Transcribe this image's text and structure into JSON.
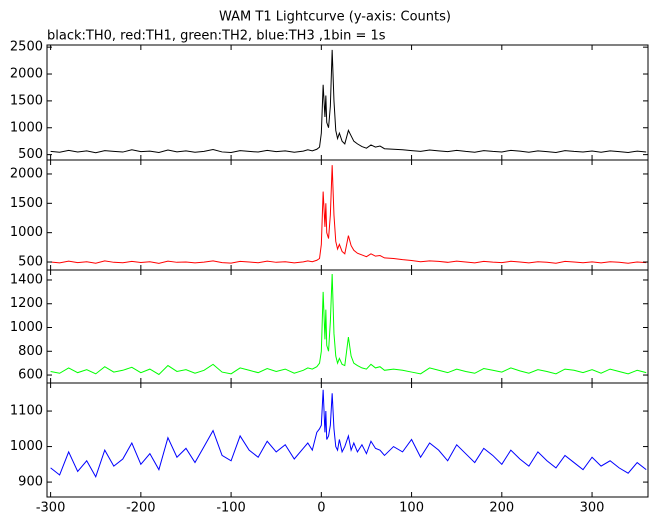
{
  "chart_data": [
    {
      "type": "line",
      "title": "WAM T1 Lightcurve (y-axis: Counts)",
      "subtitle": "black:TH0, red:TH1, green:TH2, blue:TH3 ,1bin = 1s",
      "x": [
        -300,
        -290,
        -280,
        -270,
        -260,
        -250,
        -240,
        -230,
        -220,
        -210,
        -200,
        -190,
        -180,
        -170,
        -160,
        -150,
        -140,
        -130,
        -120,
        -110,
        -100,
        -90,
        -80,
        -70,
        -60,
        -50,
        -40,
        -30,
        -20,
        -15,
        -10,
        -5,
        -2,
        0,
        2,
        4,
        5,
        6,
        8,
        10,
        12,
        14,
        16,
        18,
        20,
        23,
        26,
        30,
        33,
        36,
        40,
        45,
        50,
        55,
        60,
        65,
        70,
        80,
        90,
        100,
        110,
        120,
        130,
        140,
        150,
        160,
        170,
        180,
        190,
        200,
        210,
        220,
        230,
        240,
        250,
        260,
        270,
        280,
        290,
        300,
        310,
        320,
        330,
        340,
        350,
        360
      ],
      "series": [
        {
          "name": "TH0",
          "color": "#000000",
          "values": [
            560,
            545,
            580,
            550,
            570,
            535,
            575,
            560,
            548,
            590,
            555,
            565,
            540,
            585,
            552,
            570,
            545,
            560,
            595,
            550,
            540,
            575,
            560,
            548,
            580,
            555,
            570,
            545,
            565,
            590,
            570,
            600,
            640,
            900,
            1800,
            1200,
            1600,
            1100,
            1000,
            1400,
            2450,
            1500,
            950,
            800,
            900,
            750,
            700,
            950,
            850,
            750,
            700,
            650,
            620,
            680,
            640,
            660,
            610,
            600,
            590,
            575,
            560,
            585,
            570,
            555,
            580,
            560,
            545,
            575,
            560,
            550,
            580,
            565,
            545,
            570,
            555,
            540,
            575,
            560,
            550,
            568,
            545,
            570,
            555,
            540,
            565,
            550
          ]
        }
      ],
      "xlim": [
        -304,
        362
      ],
      "ylim": [
        400,
        2540
      ],
      "yticks": [
        500,
        1000,
        1500,
        2000,
        2500
      ]
    },
    {
      "type": "line",
      "x": [
        -300,
        -290,
        -280,
        -270,
        -260,
        -250,
        -240,
        -230,
        -220,
        -210,
        -200,
        -190,
        -180,
        -170,
        -160,
        -150,
        -140,
        -130,
        -120,
        -110,
        -100,
        -90,
        -80,
        -70,
        -60,
        -50,
        -40,
        -30,
        -20,
        -15,
        -10,
        -5,
        -2,
        0,
        2,
        4,
        5,
        6,
        8,
        10,
        12,
        14,
        16,
        18,
        20,
        23,
        26,
        30,
        33,
        36,
        40,
        45,
        50,
        55,
        60,
        65,
        70,
        80,
        90,
        100,
        110,
        120,
        130,
        140,
        150,
        160,
        170,
        180,
        190,
        200,
        210,
        220,
        230,
        240,
        250,
        260,
        270,
        280,
        290,
        300,
        310,
        320,
        330,
        340,
        350,
        360
      ],
      "series": [
        {
          "name": "TH1",
          "color": "#ff0000",
          "values": [
            500,
            485,
            515,
            490,
            505,
            480,
            520,
            495,
            488,
            510,
            492,
            505,
            478,
            515,
            495,
            500,
            485,
            498,
            520,
            490,
            482,
            510,
            500,
            488,
            515,
            495,
            505,
            485,
            502,
            520,
            505,
            530,
            560,
            800,
            1700,
            1100,
            1500,
            1000,
            900,
            1300,
            2150,
            1300,
            850,
            720,
            800,
            680,
            640,
            950,
            780,
            700,
            650,
            620,
            590,
            640,
            600,
            610,
            570,
            560,
            540,
            525,
            505,
            520,
            510,
            495,
            515,
            500,
            485,
            510,
            498,
            490,
            512,
            500,
            485,
            505,
            495,
            480,
            510,
            500,
            488,
            502,
            485,
            505,
            495,
            480,
            500,
            490
          ]
        }
      ],
      "xlim": [
        -304,
        362
      ],
      "ylim": [
        364,
        2238
      ],
      "yticks": [
        500,
        1000,
        1500,
        2000
      ]
    },
    {
      "type": "line",
      "x": [
        -300,
        -290,
        -280,
        -270,
        -260,
        -250,
        -240,
        -230,
        -220,
        -210,
        -200,
        -190,
        -180,
        -170,
        -160,
        -150,
        -140,
        -130,
        -120,
        -110,
        -100,
        -90,
        -80,
        -70,
        -60,
        -50,
        -40,
        -30,
        -20,
        -15,
        -10,
        -5,
        -2,
        0,
        2,
        4,
        5,
        6,
        8,
        10,
        12,
        14,
        16,
        18,
        20,
        23,
        26,
        30,
        33,
        36,
        40,
        45,
        50,
        55,
        60,
        65,
        70,
        80,
        90,
        100,
        110,
        120,
        130,
        140,
        150,
        160,
        170,
        180,
        190,
        200,
        210,
        220,
        230,
        240,
        250,
        260,
        270,
        280,
        290,
        300,
        310,
        320,
        330,
        340,
        350,
        360
      ],
      "series": [
        {
          "name": "TH2",
          "color": "#00ff00",
          "values": [
            630,
            615,
            660,
            620,
            645,
            610,
            670,
            625,
            640,
            665,
            620,
            650,
            605,
            680,
            630,
            645,
            615,
            640,
            690,
            625,
            610,
            660,
            640,
            620,
            655,
            630,
            650,
            615,
            640,
            660,
            650,
            670,
            700,
            800,
            1300,
            900,
            1150,
            850,
            800,
            1050,
            1450,
            950,
            760,
            700,
            740,
            690,
            680,
            920,
            760,
            700,
            680,
            660,
            650,
            690,
            660,
            670,
            640,
            650,
            640,
            625,
            610,
            660,
            640,
            620,
            650,
            630,
            615,
            655,
            640,
            625,
            660,
            635,
            615,
            645,
            630,
            610,
            650,
            640,
            620,
            645,
            615,
            650,
            630,
            610,
            640,
            620
          ]
        }
      ],
      "xlim": [
        -304,
        362
      ],
      "ylim": [
        533,
        1484
      ],
      "yticks": [
        600,
        800,
        1000,
        1200,
        1400
      ]
    },
    {
      "type": "line",
      "x": [
        -300,
        -290,
        -280,
        -270,
        -260,
        -250,
        -240,
        -230,
        -220,
        -210,
        -200,
        -190,
        -180,
        -170,
        -160,
        -150,
        -140,
        -130,
        -120,
        -110,
        -100,
        -90,
        -80,
        -70,
        -60,
        -50,
        -40,
        -30,
        -20,
        -15,
        -10,
        -5,
        -2,
        0,
        2,
        4,
        5,
        6,
        8,
        10,
        12,
        14,
        16,
        18,
        20,
        23,
        26,
        30,
        33,
        36,
        40,
        45,
        50,
        55,
        60,
        65,
        70,
        80,
        90,
        100,
        110,
        120,
        130,
        140,
        150,
        160,
        170,
        180,
        190,
        200,
        210,
        220,
        230,
        240,
        250,
        260,
        270,
        280,
        290,
        300,
        310,
        320,
        330,
        340,
        350,
        360
      ],
      "series": [
        {
          "name": "TH3",
          "color": "#0000ff",
          "values": [
            940,
            920,
            985,
            930,
            960,
            915,
            990,
            945,
            965,
            1010,
            950,
            980,
            935,
            1025,
            970,
            995,
            955,
            1000,
            1045,
            975,
            960,
            1030,
            990,
            970,
            1015,
            985,
            1005,
            965,
            995,
            1010,
            990,
            1040,
            1050,
            1060,
            1160,
            1040,
            1100,
            1020,
            1030,
            1060,
            1150,
            1050,
            1000,
            990,
            1020,
            985,
            1000,
            1030,
            990,
            1010,
            985,
            1005,
            980,
            1015,
            995,
            990,
            975,
            1000,
            985,
            1020,
            970,
            1010,
            990,
            960,
            1005,
            980,
            955,
            995,
            975,
            950,
            990,
            965,
            945,
            985,
            960,
            940,
            975,
            955,
            935,
            970,
            945,
            960,
            940,
            925,
            955,
            935
          ]
        }
      ],
      "xlim": [
        -304,
        362
      ],
      "ylim": [
        858,
        1179
      ],
      "yticks": [
        900,
        1000,
        1100
      ],
      "xticks": [
        -300,
        -200,
        -100,
        0,
        100,
        200,
        300
      ]
    }
  ]
}
